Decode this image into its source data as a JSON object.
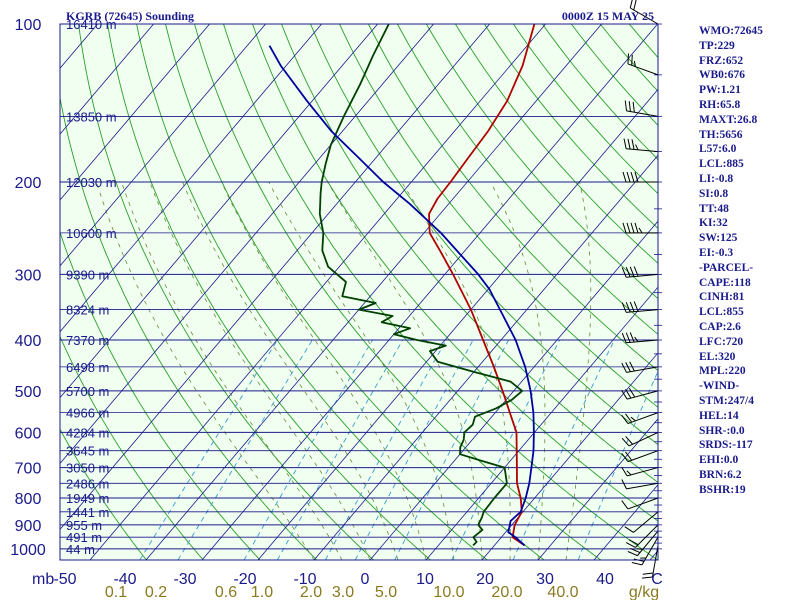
{
  "header": {
    "station": "KGRB (72645) Sounding",
    "time": "0000Z 15 MAY 25"
  },
  "axes": {
    "p_unit": "mb",
    "pressure_ticks": [
      100,
      200,
      300,
      400,
      500,
      600,
      700,
      800,
      900,
      1000
    ],
    "temp_ticks": [
      -50,
      -40,
      -30,
      -20,
      -10,
      0,
      10,
      20,
      30,
      40
    ],
    "temp_tick_last": "C",
    "mixing_ratio_labels": [
      "0.1",
      "0.2",
      "0.6",
      "1.0",
      "2.0",
      "3.0",
      "5.0",
      "10.0",
      "20.0",
      "40.0"
    ],
    "mixing_unit": "g/kg"
  },
  "heights": [
    {
      "p": 100,
      "label": "16410 m"
    },
    {
      "p": 150,
      "label": "13850 m"
    },
    {
      "p": 200,
      "label": "12030 m"
    },
    {
      "p": 250,
      "label": "10600 m"
    },
    {
      "p": 300,
      "label": "9390 m"
    },
    {
      "p": 350,
      "label": "8324 m"
    },
    {
      "p": 400,
      "label": "7370 m"
    },
    {
      "p": 450,
      "label": "6498 m"
    },
    {
      "p": 500,
      "label": "5700 m"
    },
    {
      "p": 550,
      "label": "4966 m"
    },
    {
      "p": 600,
      "label": "4284 m"
    },
    {
      "p": 650,
      "label": "3645 m"
    },
    {
      "p": 700,
      "label": "3050 m"
    },
    {
      "p": 750,
      "label": "2486 m"
    },
    {
      "p": 800,
      "label": "1949 m"
    },
    {
      "p": 850,
      "label": "1441 m"
    },
    {
      "p": 900,
      "label": "955 m"
    },
    {
      "p": 950,
      "label": "491 m"
    },
    {
      "p": 1000,
      "label": "44 m"
    }
  ],
  "chart_data": {
    "type": "line",
    "x_axis": "temperature",
    "y_axis": "pressure",
    "y_scale": "log",
    "ylim": [
      1000,
      100
    ],
    "xlim": [
      -50,
      50
    ],
    "series": [
      {
        "role": "temperature",
        "color": "#b00000",
        "points": [
          [
            985,
            25.4
          ],
          [
            950,
            22.0
          ],
          [
            900,
            20.5
          ],
          [
            850,
            19.8
          ],
          [
            800,
            17.5
          ],
          [
            750,
            14.6
          ],
          [
            700,
            12.2
          ],
          [
            650,
            9.6
          ],
          [
            600,
            6.8
          ],
          [
            550,
            2.6
          ],
          [
            500,
            -2.0
          ],
          [
            450,
            -7.2
          ],
          [
            400,
            -13.2
          ],
          [
            350,
            -20.0
          ],
          [
            300,
            -28.5
          ],
          [
            270,
            -34.5
          ],
          [
            250,
            -39.0
          ],
          [
            230,
            -42.0
          ],
          [
            215,
            -42.8
          ],
          [
            200,
            -43.0
          ],
          [
            180,
            -43.5
          ],
          [
            160,
            -44.0
          ],
          [
            140,
            -45.2
          ],
          [
            120,
            -47.8
          ],
          [
            100,
            -52.0
          ]
        ]
      },
      {
        "role": "dewpoint",
        "color": "#004000",
        "points": [
          [
            985,
            16.2
          ],
          [
            970,
            16.3
          ],
          [
            950,
            15.0
          ],
          [
            920,
            15.5
          ],
          [
            900,
            14.0
          ],
          [
            870,
            13.5
          ],
          [
            850,
            13.0
          ],
          [
            800,
            12.8
          ],
          [
            750,
            12.8
          ],
          [
            700,
            10.0
          ],
          [
            680,
            5.0
          ],
          [
            660,
            0.0
          ],
          [
            640,
            -1.0
          ],
          [
            620,
            -1.5
          ],
          [
            600,
            -2.5
          ],
          [
            580,
            -2.2
          ],
          [
            560,
            -3.0
          ],
          [
            540,
            -0.5
          ],
          [
            520,
            1.0
          ],
          [
            500,
            1.5
          ],
          [
            480,
            -2.0
          ],
          [
            460,
            -10.0
          ],
          [
            440,
            -18.0
          ],
          [
            420,
            -21.0
          ],
          [
            410,
            -19.0
          ],
          [
            400,
            -25.0
          ],
          [
            390,
            -30.0
          ],
          [
            380,
            -28.0
          ],
          [
            370,
            -34.0
          ],
          [
            360,
            -33.0
          ],
          [
            350,
            -40.0
          ],
          [
            340,
            -38.0
          ],
          [
            330,
            -45.0
          ],
          [
            310,
            -46.5
          ],
          [
            290,
            -52.0
          ],
          [
            270,
            -55.5
          ],
          [
            250,
            -58.0
          ],
          [
            230,
            -61.5
          ],
          [
            210,
            -64.5
          ],
          [
            200,
            -66.0
          ],
          [
            185,
            -68.0
          ],
          [
            170,
            -70.0
          ],
          [
            150,
            -72.0
          ],
          [
            130,
            -74.0
          ],
          [
            115,
            -76.0
          ],
          [
            100,
            -78.0
          ]
        ]
      },
      {
        "role": "parcel",
        "color": "#0000a0",
        "points": [
          [
            985,
            25.4
          ],
          [
            950,
            22.5
          ],
          [
            930,
            20.5
          ],
          [
            885,
            19.2
          ],
          [
            850,
            19.6
          ],
          [
            800,
            18.4
          ],
          [
            750,
            16.8
          ],
          [
            700,
            14.8
          ],
          [
            650,
            12.6
          ],
          [
            600,
            9.9
          ],
          [
            550,
            6.8
          ],
          [
            500,
            3.0
          ],
          [
            450,
            -1.6
          ],
          [
            400,
            -7.4
          ],
          [
            350,
            -14.8
          ],
          [
            320,
            -19.8
          ],
          [
            300,
            -24.0
          ],
          [
            250,
            -37.0
          ],
          [
            220,
            -47.0
          ],
          [
            200,
            -55.0
          ],
          [
            180,
            -63.0
          ],
          [
            160,
            -72.0
          ],
          [
            140,
            -81.0
          ],
          [
            120,
            -91.0
          ],
          [
            110,
            -96.0
          ]
        ]
      }
    ],
    "wind_barbs": [
      {
        "p": 985,
        "dir": 190,
        "kt": 20
      },
      {
        "p": 950,
        "dir": 210,
        "kt": 25
      },
      {
        "p": 925,
        "dir": 220,
        "kt": 25
      },
      {
        "p": 900,
        "dir": 225,
        "kt": 20
      },
      {
        "p": 850,
        "dir": 230,
        "kt": 10
      },
      {
        "p": 800,
        "dir": 250,
        "kt": 10
      },
      {
        "p": 750,
        "dir": 260,
        "kt": 10
      },
      {
        "p": 700,
        "dir": 255,
        "kt": 15
      },
      {
        "p": 650,
        "dir": 250,
        "kt": 20
      },
      {
        "p": 600,
        "dir": 245,
        "kt": 20
      },
      {
        "p": 550,
        "dir": 250,
        "kt": 25
      },
      {
        "p": 500,
        "dir": 255,
        "kt": 30
      },
      {
        "p": 450,
        "dir": 260,
        "kt": 30
      },
      {
        "p": 400,
        "dir": 265,
        "kt": 35
      },
      {
        "p": 350,
        "dir": 265,
        "kt": 40
      },
      {
        "p": 300,
        "dir": 265,
        "kt": 40
      },
      {
        "p": 250,
        "dir": 270,
        "kt": 45
      },
      {
        "p": 200,
        "dir": 270,
        "kt": 40
      },
      {
        "p": 175,
        "dir": 275,
        "kt": 35
      },
      {
        "p": 150,
        "dir": 280,
        "kt": 30
      },
      {
        "p": 125,
        "dir": 290,
        "kt": 25
      },
      {
        "p": 100,
        "dir": 300,
        "kt": 20
      }
    ]
  },
  "indices": [
    "WMO:72645",
    "TP:229",
    "FRZ:652",
    "WB0:676",
    "PW:1.21",
    "RH:65.8",
    "MAXT:26.8",
    "TH:5656",
    "L57:6.0",
    "LCL:885",
    "LI:-0.8",
    "SI:0.8",
    "TT:48",
    "KI:32",
    "SW:125",
    "EI:-0.3",
    "-PARCEL-",
    "CAPE:118",
    "CINH:81",
    "LCL:855",
    "CAP:2.6",
    "LFC:720",
    "EL:320",
    "MPL:220",
    "-WIND-",
    "STM:247/4",
    "HEL:14",
    "SHR-:0.0",
    "SRDS:-117",
    "EHI:0.0",
    "BRN:6.2",
    "BSHR:19"
  ],
  "colors": {
    "isobar": "#1a1a8c",
    "isotherm": "#1a1a8c",
    "dry_adiabat": "#2aa02a",
    "moist_adiabat": "#6a8a3a",
    "mixing_ratio": "#3a9ad0",
    "temperature": "#b00000",
    "dewpoint": "#004000",
    "parcel": "#0000a0"
  }
}
